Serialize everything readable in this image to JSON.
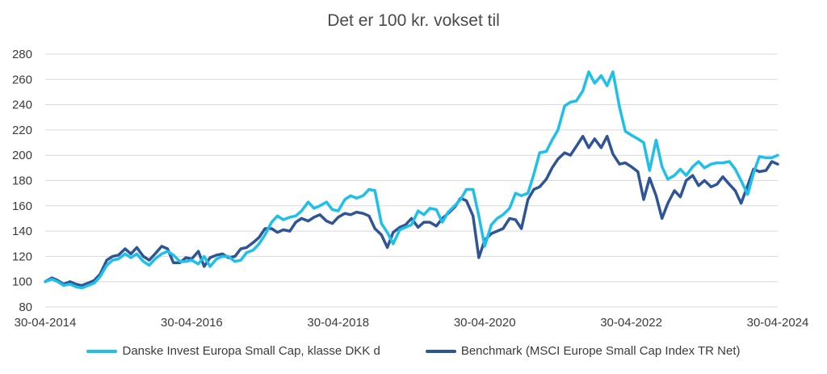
{
  "chart_data": {
    "type": "line",
    "title": "Det er 100 kr. vokset til",
    "xlabel": "",
    "ylabel": "",
    "ylim": [
      80,
      280
    ],
    "yticks": [
      80,
      100,
      120,
      140,
      160,
      180,
      200,
      220,
      240,
      260,
      280
    ],
    "xticks": [
      "30-04-2014",
      "30-04-2016",
      "30-04-2018",
      "30-04-2020",
      "30-04-2022",
      "30-04-2024"
    ],
    "xlim": [
      2014.33,
      2024.33
    ],
    "grid": "horizontal",
    "legend_position": "bottom",
    "series": [
      {
        "name": "Danske Invest Europa Small Cap, klasse DKK d",
        "color": "#1ec0ea",
        "points": [
          [
            2014.33,
            100
          ],
          [
            2014.42,
            102
          ],
          [
            2014.5,
            100
          ],
          [
            2014.58,
            97
          ],
          [
            2014.67,
            98
          ],
          [
            2014.75,
            96
          ],
          [
            2014.83,
            95
          ],
          [
            2014.92,
            97
          ],
          [
            2015.0,
            99
          ],
          [
            2015.08,
            104
          ],
          [
            2015.17,
            113
          ],
          [
            2015.25,
            117
          ],
          [
            2015.33,
            118
          ],
          [
            2015.42,
            122
          ],
          [
            2015.5,
            119
          ],
          [
            2015.58,
            122
          ],
          [
            2015.67,
            116
          ],
          [
            2015.75,
            113
          ],
          [
            2015.83,
            118
          ],
          [
            2015.92,
            122
          ],
          [
            2016.0,
            124
          ],
          [
            2016.08,
            121
          ],
          [
            2016.17,
            116
          ],
          [
            2016.25,
            116
          ],
          [
            2016.33,
            117
          ],
          [
            2016.42,
            114
          ],
          [
            2016.5,
            120
          ],
          [
            2016.58,
            112
          ],
          [
            2016.67,
            118
          ],
          [
            2016.75,
            120
          ],
          [
            2016.83,
            120
          ],
          [
            2016.92,
            116
          ],
          [
            2017.0,
            117
          ],
          [
            2017.08,
            123
          ],
          [
            2017.17,
            125
          ],
          [
            2017.25,
            130
          ],
          [
            2017.33,
            137
          ],
          [
            2017.42,
            147
          ],
          [
            2017.5,
            152
          ],
          [
            2017.58,
            149
          ],
          [
            2017.67,
            151
          ],
          [
            2017.75,
            152
          ],
          [
            2017.83,
            156
          ],
          [
            2017.92,
            163
          ],
          [
            2018.0,
            158
          ],
          [
            2018.08,
            160
          ],
          [
            2018.17,
            163
          ],
          [
            2018.25,
            157
          ],
          [
            2018.33,
            156
          ],
          [
            2018.42,
            165
          ],
          [
            2018.5,
            168
          ],
          [
            2018.58,
            166
          ],
          [
            2018.67,
            168
          ],
          [
            2018.75,
            173
          ],
          [
            2018.83,
            172
          ],
          [
            2018.92,
            146
          ],
          [
            2019.0,
            139
          ],
          [
            2019.08,
            130
          ],
          [
            2019.17,
            141
          ],
          [
            2019.25,
            143
          ],
          [
            2019.33,
            145
          ],
          [
            2019.42,
            156
          ],
          [
            2019.5,
            153
          ],
          [
            2019.58,
            158
          ],
          [
            2019.67,
            157
          ],
          [
            2019.75,
            147
          ],
          [
            2019.83,
            155
          ],
          [
            2019.92,
            160
          ],
          [
            2020.0,
            165
          ],
          [
            2020.08,
            173
          ],
          [
            2020.17,
            173
          ],
          [
            2020.25,
            152
          ],
          [
            2020.33,
            128
          ],
          [
            2020.42,
            145
          ],
          [
            2020.5,
            150
          ],
          [
            2020.58,
            153
          ],
          [
            2020.67,
            158
          ],
          [
            2020.75,
            170
          ],
          [
            2020.83,
            168
          ],
          [
            2020.92,
            170
          ],
          [
            2021.0,
            185
          ],
          [
            2021.08,
            202
          ],
          [
            2021.17,
            203
          ],
          [
            2021.25,
            212
          ],
          [
            2021.33,
            220
          ],
          [
            2021.42,
            239
          ],
          [
            2021.5,
            242
          ],
          [
            2021.58,
            243
          ],
          [
            2021.67,
            251
          ],
          [
            2021.75,
            266
          ],
          [
            2021.83,
            257
          ],
          [
            2021.92,
            263
          ],
          [
            2022.0,
            255
          ],
          [
            2022.08,
            266
          ],
          [
            2022.17,
            238
          ],
          [
            2022.25,
            219
          ],
          [
            2022.33,
            216
          ],
          [
            2022.42,
            213
          ],
          [
            2022.5,
            210
          ],
          [
            2022.58,
            188
          ],
          [
            2022.67,
            212
          ],
          [
            2022.75,
            191
          ],
          [
            2022.83,
            181
          ],
          [
            2022.92,
            184
          ],
          [
            2023.0,
            189
          ],
          [
            2023.08,
            184
          ],
          [
            2023.17,
            191
          ],
          [
            2023.25,
            195
          ],
          [
            2023.33,
            190
          ],
          [
            2023.42,
            193
          ],
          [
            2023.5,
            194
          ],
          [
            2023.58,
            194
          ],
          [
            2023.67,
            195
          ],
          [
            2023.75,
            189
          ],
          [
            2023.83,
            180
          ],
          [
            2023.92,
            169
          ],
          [
            2024.0,
            186
          ],
          [
            2024.08,
            199
          ],
          [
            2024.17,
            198
          ],
          [
            2024.25,
            198
          ],
          [
            2024.33,
            200
          ]
        ]
      },
      {
        "name": "Benchmark (MSCI Europe Small Cap Index TR Net)",
        "color": "#2f5597",
        "points": [
          [
            2014.33,
            100
          ],
          [
            2014.42,
            103
          ],
          [
            2014.5,
            101
          ],
          [
            2014.58,
            98
          ],
          [
            2014.67,
            100
          ],
          [
            2014.75,
            98
          ],
          [
            2014.83,
            97
          ],
          [
            2014.92,
            99
          ],
          [
            2015.0,
            101
          ],
          [
            2015.08,
            106
          ],
          [
            2015.17,
            117
          ],
          [
            2015.25,
            120
          ],
          [
            2015.33,
            121
          ],
          [
            2015.42,
            126
          ],
          [
            2015.5,
            122
          ],
          [
            2015.58,
            127
          ],
          [
            2015.67,
            120
          ],
          [
            2015.75,
            117
          ],
          [
            2015.83,
            122
          ],
          [
            2015.92,
            128
          ],
          [
            2016.0,
            126
          ],
          [
            2016.08,
            115
          ],
          [
            2016.17,
            115
          ],
          [
            2016.25,
            119
          ],
          [
            2016.33,
            118
          ],
          [
            2016.42,
            124
          ],
          [
            2016.5,
            112
          ],
          [
            2016.58,
            119
          ],
          [
            2016.67,
            121
          ],
          [
            2016.75,
            122
          ],
          [
            2016.83,
            119
          ],
          [
            2016.92,
            120
          ],
          [
            2017.0,
            126
          ],
          [
            2017.08,
            127
          ],
          [
            2017.17,
            131
          ],
          [
            2017.25,
            135
          ],
          [
            2017.33,
            142
          ],
          [
            2017.42,
            142
          ],
          [
            2017.5,
            139
          ],
          [
            2017.58,
            141
          ],
          [
            2017.67,
            140
          ],
          [
            2017.75,
            147
          ],
          [
            2017.83,
            150
          ],
          [
            2017.92,
            148
          ],
          [
            2018.0,
            151
          ],
          [
            2018.08,
            153
          ],
          [
            2018.17,
            148
          ],
          [
            2018.25,
            146
          ],
          [
            2018.33,
            151
          ],
          [
            2018.42,
            154
          ],
          [
            2018.5,
            153
          ],
          [
            2018.58,
            155
          ],
          [
            2018.67,
            154
          ],
          [
            2018.75,
            152
          ],
          [
            2018.83,
            142
          ],
          [
            2018.92,
            137
          ],
          [
            2019.0,
            127
          ],
          [
            2019.08,
            139
          ],
          [
            2019.17,
            143
          ],
          [
            2019.25,
            145
          ],
          [
            2019.33,
            150
          ],
          [
            2019.42,
            143
          ],
          [
            2019.5,
            147
          ],
          [
            2019.58,
            147
          ],
          [
            2019.67,
            144
          ],
          [
            2019.75,
            150
          ],
          [
            2019.83,
            154
          ],
          [
            2019.92,
            159
          ],
          [
            2020.0,
            166
          ],
          [
            2020.08,
            164
          ],
          [
            2020.17,
            152
          ],
          [
            2020.25,
            119
          ],
          [
            2020.33,
            133
          ],
          [
            2020.42,
            138
          ],
          [
            2020.5,
            140
          ],
          [
            2020.58,
            142
          ],
          [
            2020.67,
            150
          ],
          [
            2020.75,
            149
          ],
          [
            2020.83,
            142
          ],
          [
            2020.92,
            165
          ],
          [
            2021.0,
            173
          ],
          [
            2021.08,
            175
          ],
          [
            2021.17,
            181
          ],
          [
            2021.25,
            190
          ],
          [
            2021.33,
            197
          ],
          [
            2021.42,
            202
          ],
          [
            2021.5,
            200
          ],
          [
            2021.58,
            207
          ],
          [
            2021.67,
            215
          ],
          [
            2021.75,
            206
          ],
          [
            2021.83,
            213
          ],
          [
            2021.92,
            206
          ],
          [
            2022.0,
            215
          ],
          [
            2022.08,
            201
          ],
          [
            2022.17,
            193
          ],
          [
            2022.25,
            194
          ],
          [
            2022.33,
            191
          ],
          [
            2022.42,
            187
          ],
          [
            2022.5,
            165
          ],
          [
            2022.58,
            182
          ],
          [
            2022.67,
            168
          ],
          [
            2022.75,
            150
          ],
          [
            2022.83,
            162
          ],
          [
            2022.92,
            172
          ],
          [
            2023.0,
            167
          ],
          [
            2023.08,
            180
          ],
          [
            2023.17,
            184
          ],
          [
            2023.25,
            176
          ],
          [
            2023.33,
            180
          ],
          [
            2023.42,
            175
          ],
          [
            2023.5,
            177
          ],
          [
            2023.58,
            183
          ],
          [
            2023.67,
            177
          ],
          [
            2023.75,
            172
          ],
          [
            2023.83,
            162
          ],
          [
            2023.92,
            176
          ],
          [
            2024.0,
            189
          ],
          [
            2024.08,
            187
          ],
          [
            2024.17,
            188
          ],
          [
            2024.25,
            195
          ],
          [
            2024.33,
            193
          ]
        ]
      }
    ]
  }
}
